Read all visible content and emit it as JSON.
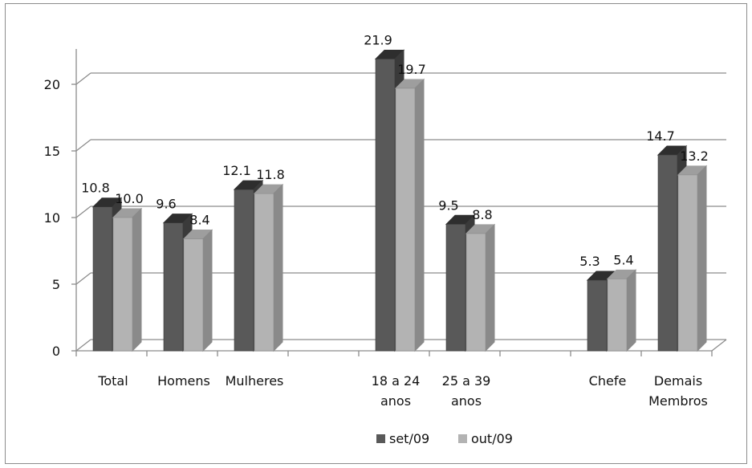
{
  "chart_data": {
    "type": "bar",
    "style": "3d-clustered-column",
    "title": "",
    "xlabel": "",
    "ylabel": "",
    "ylim": [
      0,
      20
    ],
    "yticks": [
      "0",
      "5",
      "10",
      "15",
      "20"
    ],
    "grid": true,
    "legend_position": "bottom",
    "categories": [
      [
        "Total"
      ],
      [
        "Homens"
      ],
      [
        "Mulheres"
      ],
      [],
      [
        "18 a 24",
        "anos"
      ],
      [
        "25 a 39",
        "anos"
      ],
      [],
      [
        "Chefe"
      ],
      [
        "Demais",
        "Membros"
      ]
    ],
    "series": [
      {
        "name": "set/09",
        "values": [
          10.8,
          9.6,
          12.1,
          null,
          21.9,
          9.5,
          null,
          5.3,
          14.7
        ],
        "labels": [
          "10.8",
          "9.6",
          "12.1",
          "",
          "21.9",
          "9.5",
          "",
          "5.3",
          "14.7"
        ]
      },
      {
        "name": "out/09",
        "values": [
          10.0,
          8.4,
          11.8,
          null,
          19.7,
          8.8,
          null,
          5.4,
          13.2
        ],
        "labels": [
          "10.0",
          "8.4",
          "11.8",
          "",
          "19.7",
          "8.8",
          "",
          "5.4",
          "13.2"
        ]
      }
    ],
    "colors": {
      "set/09": {
        "front": "#595959",
        "side": "#3a3a3a",
        "top": "#2e2e2e"
      },
      "out/09": {
        "front": "#b3b3b3",
        "side": "#8a8a8a",
        "top": "#9e9e9e"
      },
      "grid": "#8c8c8c",
      "axis": "#8c8c8c"
    }
  }
}
